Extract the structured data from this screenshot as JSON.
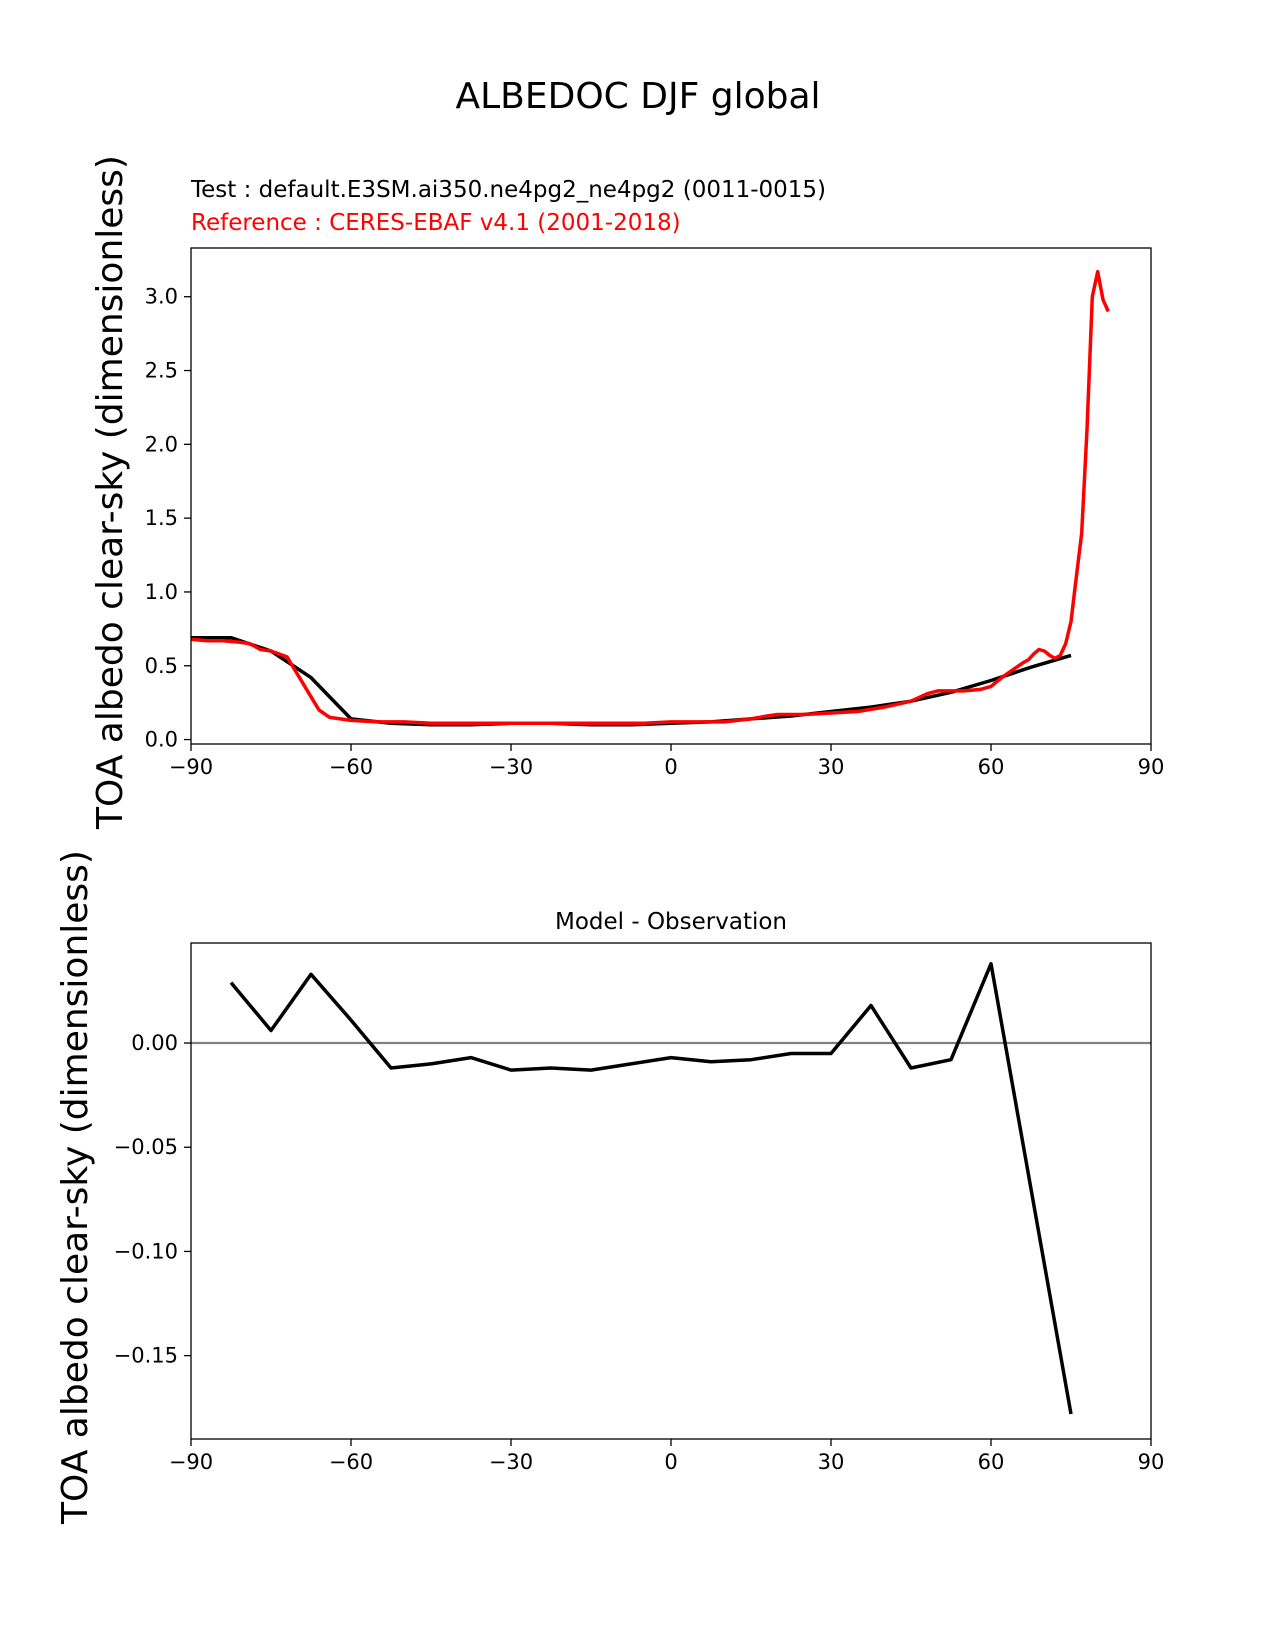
{
  "figure": {
    "suptitle": "ALBEDOC DJF global"
  },
  "colors": {
    "test": "#000000",
    "reference": "#ff0000",
    "zero_line": "#808080"
  },
  "chart_data": [
    {
      "type": "line",
      "test_label": "Test : default.E3SM.ai350.ne4pg2_ne4pg2 (0011-0015)",
      "reference_label": "Reference : CERES-EBAF v4.1 (2001-2018)",
      "ylabel": "TOA albedo clear-sky (dimensionless)",
      "xlim": [
        -90,
        90
      ],
      "ylim": [
        -0.03,
        3.33
      ],
      "xticks": [
        -90,
        -60,
        -30,
        0,
        30,
        60,
        90
      ],
      "xtick_labels": [
        "−90",
        "−60",
        "−30",
        "0",
        "30",
        "60",
        "90"
      ],
      "yticks": [
        0.0,
        0.5,
        1.0,
        1.5,
        2.0,
        2.5,
        3.0
      ],
      "ytick_labels": [
        "0.0",
        "0.5",
        "1.0",
        "1.5",
        "2.0",
        "2.5",
        "3.0"
      ],
      "series": [
        {
          "role": "test",
          "color": "#000000",
          "x": [
            -90,
            -82.5,
            -75,
            -67.5,
            -60,
            -52.5,
            -45,
            -37.5,
            -30,
            -22.5,
            -15,
            -7.5,
            0,
            7.5,
            15,
            22.5,
            30,
            37.5,
            45,
            52.5,
            60,
            67.5,
            75
          ],
          "y": [
            0.69,
            0.69,
            0.6,
            0.42,
            0.14,
            0.11,
            0.1,
            0.1,
            0.11,
            0.11,
            0.1,
            0.1,
            0.11,
            0.12,
            0.14,
            0.16,
            0.19,
            0.22,
            0.26,
            0.32,
            0.4,
            0.49,
            0.57
          ]
        },
        {
          "role": "reference",
          "color": "#ff0000",
          "x": [
            -90,
            -87,
            -84,
            -81,
            -79,
            -77,
            -75,
            -72,
            -70,
            -68,
            -66,
            -64,
            -62,
            -60,
            -55,
            -50,
            -45,
            -40,
            -35,
            -30,
            -25,
            -20,
            -15,
            -10,
            -5,
            0,
            5,
            10,
            15,
            18,
            20,
            25,
            30,
            35,
            40,
            45,
            48,
            50,
            55,
            58,
            60,
            62,
            64,
            66,
            67,
            68,
            69,
            70,
            71,
            72,
            73,
            74,
            75,
            76,
            77,
            78,
            79,
            80,
            81,
            82
          ],
          "y": [
            0.68,
            0.67,
            0.67,
            0.66,
            0.65,
            0.61,
            0.6,
            0.56,
            0.44,
            0.32,
            0.2,
            0.15,
            0.14,
            0.13,
            0.12,
            0.12,
            0.11,
            0.11,
            0.11,
            0.11,
            0.11,
            0.11,
            0.11,
            0.11,
            0.11,
            0.12,
            0.12,
            0.12,
            0.14,
            0.16,
            0.17,
            0.17,
            0.18,
            0.19,
            0.22,
            0.26,
            0.31,
            0.33,
            0.33,
            0.34,
            0.36,
            0.42,
            0.47,
            0.52,
            0.54,
            0.58,
            0.61,
            0.6,
            0.57,
            0.55,
            0.57,
            0.65,
            0.8,
            1.1,
            1.4,
            2.1,
            3.0,
            3.17,
            2.98,
            2.9
          ]
        }
      ]
    },
    {
      "type": "line",
      "title": "Model - Observation",
      "ylabel": "TOA albedo clear-sky (dimensionless)",
      "xlim": [
        -90,
        90
      ],
      "ylim": [
        -0.19,
        0.048
      ],
      "xticks": [
        -90,
        -60,
        -30,
        0,
        30,
        60,
        90
      ],
      "xtick_labels": [
        "−90",
        "−60",
        "−30",
        "0",
        "30",
        "60",
        "90"
      ],
      "yticks": [
        0.0,
        -0.05,
        -0.1,
        -0.15
      ],
      "ytick_labels": [
        "0.00",
        "−0.05",
        "−0.10",
        "−0.15"
      ],
      "zero_line": true,
      "series": [
        {
          "role": "difference",
          "color": "#000000",
          "x": [
            -82.5,
            -75,
            -67.5,
            -60,
            -52.5,
            -45,
            -37.5,
            -30,
            -22.5,
            -15,
            -7.5,
            0,
            7.5,
            15,
            22.5,
            30,
            37.5,
            45,
            52.5,
            60,
            67.5,
            75
          ],
          "y": [
            0.029,
            0.006,
            0.033,
            0.011,
            -0.012,
            -0.01,
            -0.007,
            -0.013,
            -0.012,
            -0.013,
            -0.01,
            -0.007,
            -0.009,
            -0.008,
            -0.005,
            -0.005,
            0.018,
            -0.012,
            -0.008,
            0.038,
            -0.07,
            -0.178
          ]
        }
      ]
    }
  ]
}
